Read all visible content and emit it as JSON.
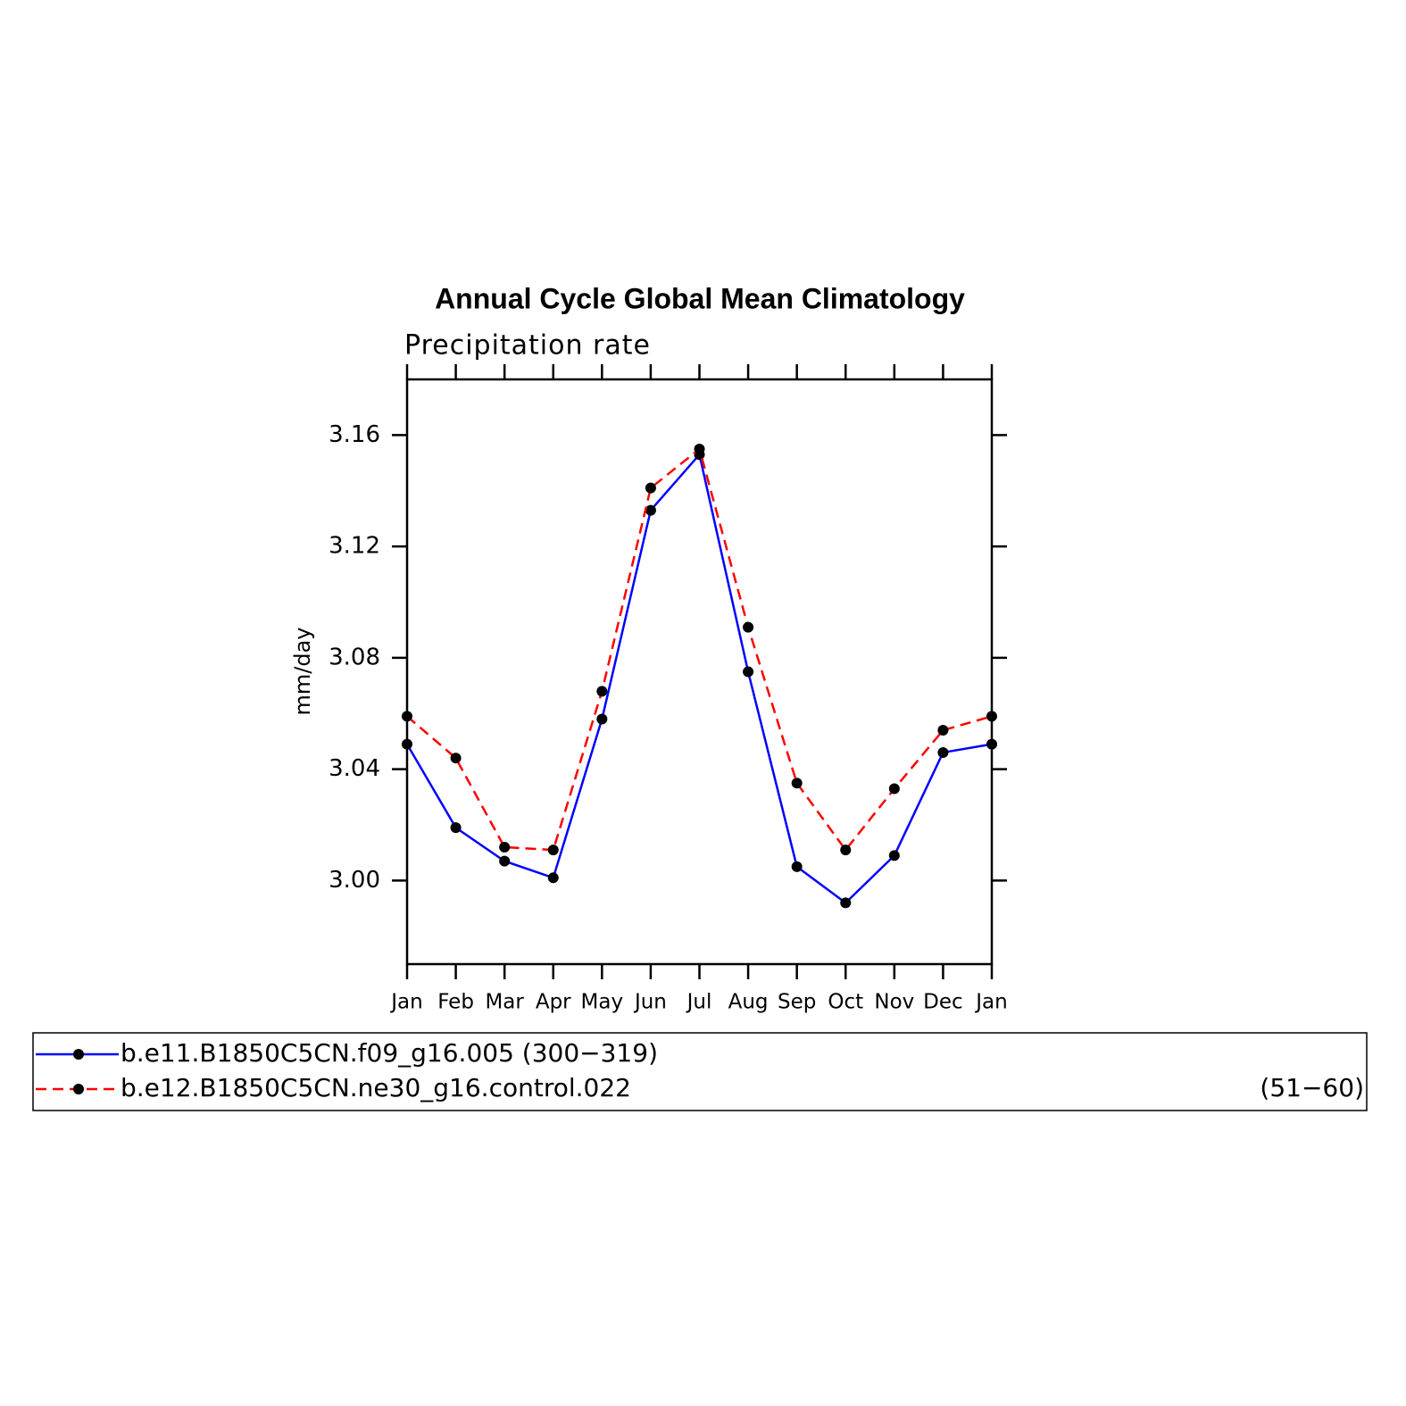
{
  "chart_data": {
    "type": "line",
    "title": "Annual Cycle Global Mean Climatology",
    "subtitle": "Precipitation rate",
    "y_label": "mm/day",
    "categories": [
      "Jan",
      "Feb",
      "Mar",
      "Apr",
      "May",
      "Jun",
      "Jul",
      "Aug",
      "Sep",
      "Oct",
      "Nov",
      "Dec",
      "Jan"
    ],
    "series": [
      {
        "name": "b.e11.B1850C5CN.f09_g16.005 (300−319)",
        "color": "#0000ff",
        "dashed": false,
        "values": [
          3.049,
          3.019,
          3.007,
          3.001,
          3.058,
          3.133,
          3.153,
          3.075,
          3.005,
          2.992,
          3.009,
          3.046,
          3.049
        ]
      },
      {
        "name": "b.e12.B1850C5CN.ne30_g16.control.022",
        "period": "(51−60)",
        "color": "#ff0000",
        "dashed": true,
        "values": [
          3.059,
          3.044,
          3.012,
          3.011,
          3.068,
          3.141,
          3.155,
          3.091,
          3.035,
          3.011,
          3.033,
          3.054,
          3.059
        ]
      }
    ],
    "ylim": [
      2.97,
      3.18
    ],
    "yticks": [
      {
        "value": 3,
        "label": "3.00"
      },
      3.04,
      3.08,
      3.12,
      3.16
    ],
    "marker_color": "#000000"
  }
}
